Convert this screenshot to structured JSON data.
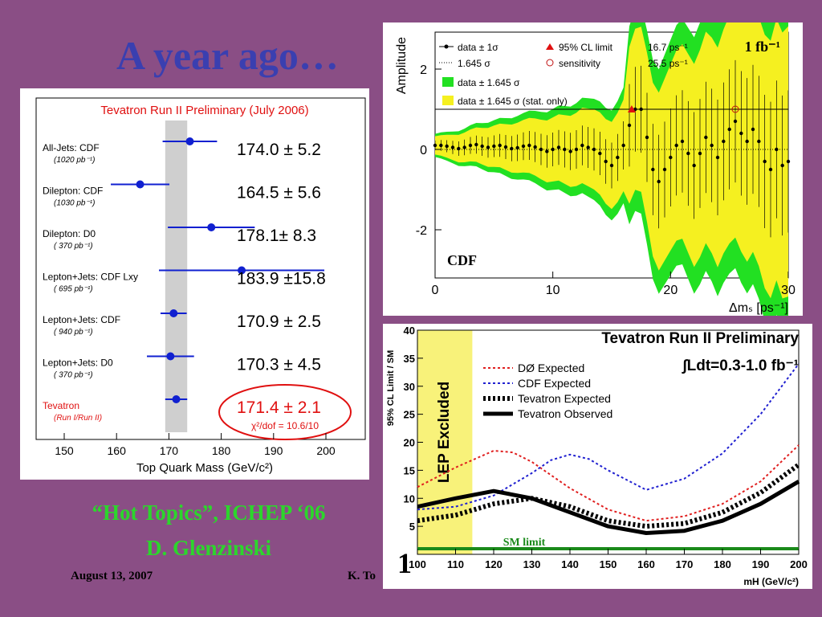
{
  "slide": {
    "title": "A year ago…",
    "hot_topics_line1": "“Hot Topics”, ICHEP ‘06",
    "hot_topics_line2": "D. Glenzinski",
    "date": "August 13, 2007",
    "author": "K. To",
    "page_number": "1"
  },
  "colors": {
    "background": "#8a4e85",
    "title": "#3a3fb0",
    "accent_green": "#2cd62c"
  },
  "chart_data": [
    {
      "type": "scatter",
      "title": "Tevatron Run II Preliminary (July 2006)",
      "xlabel": "Top Quark Mass (GeV/c²)",
      "xlim": [
        145,
        202
      ],
      "xticks": [
        150,
        160,
        170,
        180,
        190,
        200
      ],
      "band": [
        169.3,
        173.5
      ],
      "measurements": [
        {
          "label": "All-Jets: CDF",
          "lumi": "(1020 pb⁻¹)",
          "value": 174.0,
          "err": 5.2,
          "text": "174.0 ± 5.2"
        },
        {
          "label": "Dilepton: CDF",
          "lumi": "(1030 pb⁻¹)",
          "value": 164.5,
          "err": 5.6,
          "text": "164.5 ± 5.6"
        },
        {
          "label": "Dilepton: D0",
          "lumi": "( 370 pb⁻¹)",
          "value": 178.1,
          "err": 8.3,
          "text": "178.1± 8.3"
        },
        {
          "label": "Lepton+Jets: CDF Lxy",
          "lumi": "( 695 pb⁻¹)",
          "value": 183.9,
          "err": 15.8,
          "text": "183.9 ±15.8"
        },
        {
          "label": "Lepton+Jets: CDF",
          "lumi": "( 940 pb⁻¹)",
          "value": 170.9,
          "err": 2.5,
          "text": "170.9 ± 2.5"
        },
        {
          "label": "Lepton+Jets: D0",
          "lumi": "( 370 pb⁻¹)",
          "value": 170.3,
          "err": 4.5,
          "text": "170.3 ± 4.5"
        },
        {
          "label": "Tevatron",
          "lumi": "(Run I/Run II)",
          "value": 171.4,
          "err": 2.1,
          "text": "171.4 ± 2.1",
          "combined": true
        }
      ],
      "chi2": "χ²/dof = 10.6/10"
    },
    {
      "type": "line",
      "xlabel": "Δmₛ [ps⁻¹]",
      "ylabel": "Amplitude",
      "xlim": [
        0,
        30
      ],
      "ylim": [
        -3,
        2.8
      ],
      "xticks": [
        0,
        10,
        20,
        30
      ],
      "yticks": [
        -2,
        0,
        2
      ],
      "corner_label": "1 fb⁻¹",
      "experiment_label": "CDF",
      "legend": [
        {
          "symbol": "dot-line",
          "text": "data ± 1σ"
        },
        {
          "symbol": "dotted",
          "text": "1.645 σ"
        },
        {
          "symbol": "green",
          "text": "data ± 1.645 σ"
        },
        {
          "symbol": "yellow",
          "text": "data ± 1.645 σ (stat. only)"
        },
        {
          "symbol": "triangle",
          "text": "95% CL limit",
          "value": "16.7 ps⁻¹"
        },
        {
          "symbol": "circle",
          "text": "sensitivity",
          "value": "25.5 ps⁻¹"
        }
      ],
      "amplitude_points": [
        [
          0,
          0.1
        ],
        [
          0.5,
          0.1
        ],
        [
          1,
          0.08
        ],
        [
          1.5,
          0.05
        ],
        [
          2,
          0.02
        ],
        [
          2.5,
          0.05
        ],
        [
          3,
          0.1
        ],
        [
          3.5,
          0.12
        ],
        [
          4,
          0.08
        ],
        [
          4.5,
          0.05
        ],
        [
          5,
          0.08
        ],
        [
          5.5,
          0.1
        ],
        [
          6,
          0.06
        ],
        [
          6.5,
          0.02
        ],
        [
          7,
          0.04
        ],
        [
          7.5,
          0.08
        ],
        [
          8,
          0.1
        ],
        [
          8.5,
          0.06
        ],
        [
          9,
          0.0
        ],
        [
          9.5,
          -0.05
        ],
        [
          10,
          0.0
        ],
        [
          10.5,
          0.05
        ],
        [
          11,
          0.0
        ],
        [
          11.5,
          -0.05
        ],
        [
          12,
          0.0
        ],
        [
          12.5,
          0.1
        ],
        [
          13,
          0.05
        ],
        [
          13.5,
          0.0
        ],
        [
          14,
          -0.1
        ],
        [
          14.5,
          -0.3
        ],
        [
          15,
          -0.4
        ],
        [
          15.5,
          -0.2
        ],
        [
          16,
          0.1
        ],
        [
          16.5,
          0.6
        ],
        [
          17,
          1.0
        ],
        [
          17.5,
          1.0
        ],
        [
          18,
          0.3
        ],
        [
          18.5,
          -0.5
        ],
        [
          19,
          -0.8
        ],
        [
          19.5,
          -0.5
        ],
        [
          20,
          -0.2
        ],
        [
          20.5,
          0.1
        ],
        [
          21,
          0.2
        ],
        [
          21.5,
          -0.1
        ],
        [
          22,
          -0.4
        ],
        [
          22.5,
          -0.1
        ],
        [
          23,
          0.3
        ],
        [
          23.5,
          0.1
        ],
        [
          24,
          -0.2
        ],
        [
          24.5,
          0.2
        ],
        [
          25,
          0.5
        ],
        [
          25.5,
          0.7
        ],
        [
          26,
          0.4
        ],
        [
          26.5,
          0.2
        ],
        [
          27,
          0.5
        ],
        [
          27.5,
          0.2
        ],
        [
          28,
          -0.3
        ],
        [
          28.5,
          -0.5
        ],
        [
          29,
          0.0
        ],
        [
          29.5,
          -0.4
        ],
        [
          30,
          -0.3
        ]
      ]
    },
    {
      "type": "line",
      "title": "Tevatron Run II Preliminary",
      "luminosity": "∫Ldt=0.3-1.0 fb⁻¹",
      "xlabel": "mH (GeV/c²)",
      "ylabel": "95% CL Limit / SM",
      "xlim": [
        100,
        200
      ],
      "ylim": [
        0,
        40
      ],
      "xticks": [
        100,
        110,
        120,
        130,
        140,
        150,
        160,
        170,
        180,
        190,
        200
      ],
      "yticks": [
        5,
        10,
        15,
        20,
        25,
        30,
        35,
        40
      ],
      "excluded_region": {
        "x": [
          100,
          114.4
        ],
        "label": "LEP Excluded"
      },
      "sm_limit_label": "SM limit",
      "series": [
        {
          "name": "DØ Expected",
          "color": "#e02020",
          "style": "dotted",
          "x": [
            100,
            110,
            120,
            125,
            130,
            140,
            150,
            160,
            170,
            180,
            190,
            200
          ],
          "values": [
            12,
            15.5,
            18.5,
            18.2,
            16.5,
            11.8,
            8,
            6,
            6.8,
            9,
            13,
            19.5
          ]
        },
        {
          "name": "CDF Expected",
          "color": "#2020d0",
          "style": "dotted",
          "x": [
            100,
            110,
            120,
            130,
            135,
            140,
            145,
            150,
            160,
            170,
            180,
            190,
            200
          ],
          "values": [
            8,
            8.5,
            10.5,
            14.5,
            16.8,
            17.8,
            17,
            15,
            11.5,
            13.5,
            18,
            25,
            34
          ]
        },
        {
          "name": "Tevatron Expected",
          "color": "#000000",
          "style": "dotted-thick",
          "x": [
            100,
            110,
            120,
            130,
            140,
            150,
            160,
            170,
            180,
            190,
            200
          ],
          "values": [
            6,
            7,
            9,
            10,
            8.5,
            6,
            5,
            5.5,
            7.5,
            11,
            16
          ]
        },
        {
          "name": "Tevatron Observed",
          "color": "#000000",
          "style": "solid",
          "x": [
            100,
            110,
            120,
            130,
            140,
            150,
            160,
            170,
            180,
            190,
            200
          ],
          "values": [
            8.5,
            10,
            11.3,
            10,
            7.5,
            5,
            3.8,
            4.2,
            6,
            9,
            13
          ]
        }
      ]
    }
  ]
}
